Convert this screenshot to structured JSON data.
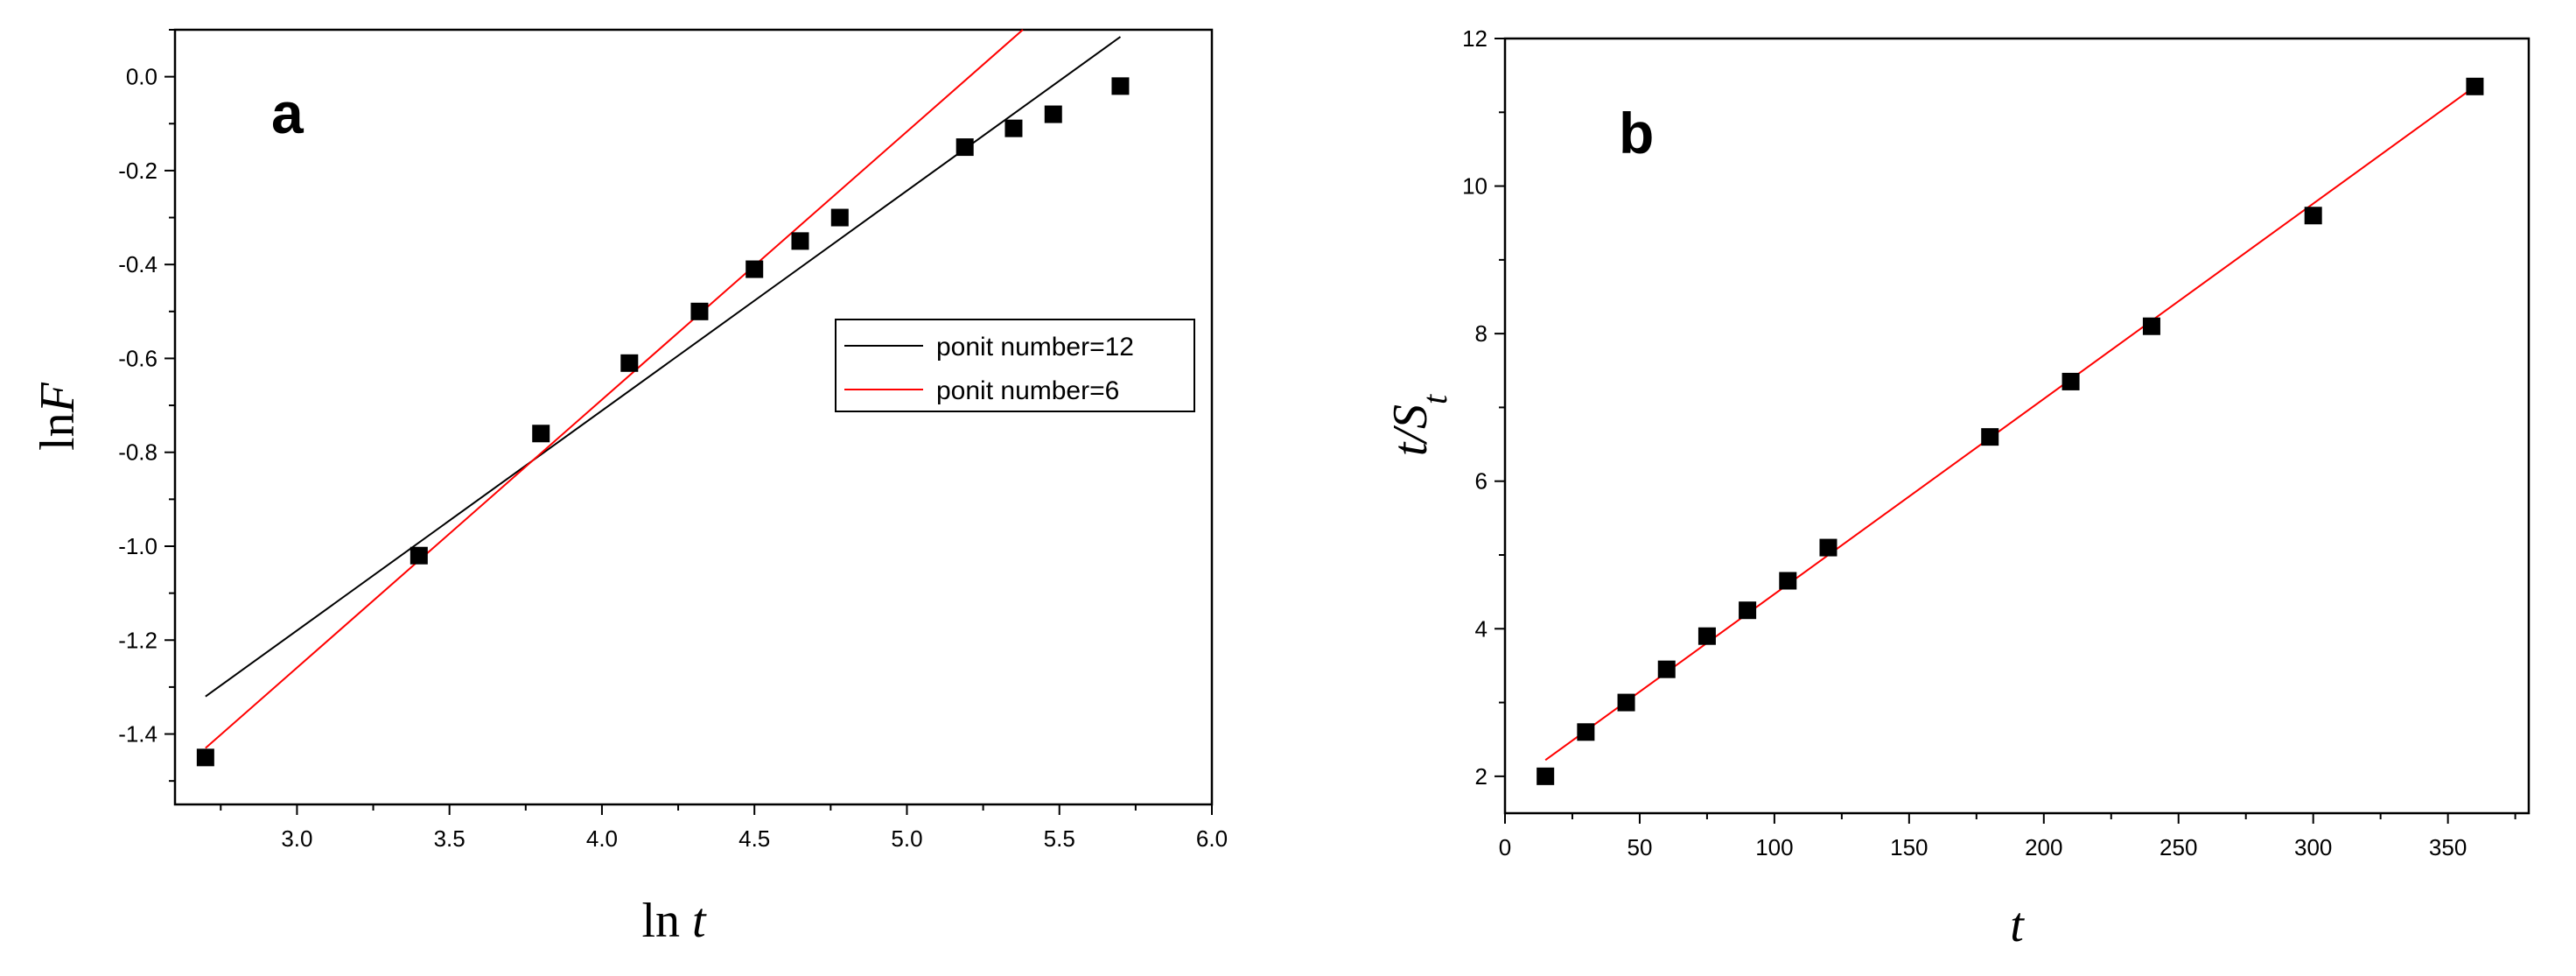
{
  "chart_data": [
    {
      "type": "scatter",
      "panel_label": "a",
      "xlabel_parts": {
        "prefix": "ln ",
        "var": "t"
      },
      "ylabel_parts": {
        "prefix": "ln",
        "var": "F"
      },
      "xlim": [
        2.6,
        6.0
      ],
      "ylim": [
        -1.55,
        0.1
      ],
      "xticks": [
        "3.0",
        "3.5",
        "4.0",
        "4.5",
        "5.0",
        "5.5",
        "6.0"
      ],
      "yticks": [
        "0.0",
        "-0.2",
        "-0.4",
        "-0.6",
        "-0.8",
        "-1.0",
        "-1.2",
        "-1.4"
      ],
      "points": [
        [
          2.7,
          -1.45
        ],
        [
          3.4,
          -1.02
        ],
        [
          3.8,
          -0.76
        ],
        [
          4.09,
          -0.61
        ],
        [
          4.32,
          -0.5
        ],
        [
          4.5,
          -0.41
        ],
        [
          4.65,
          -0.35
        ],
        [
          4.78,
          -0.3
        ],
        [
          5.19,
          -0.15
        ],
        [
          5.35,
          -0.11
        ],
        [
          5.48,
          -0.08
        ],
        [
          5.7,
          -0.02
        ]
      ],
      "fit_lines": [
        {
          "name": "ponit number=12",
          "color": "#000000",
          "x": [
            2.7,
            5.7
          ],
          "y": [
            -1.32,
            0.085
          ]
        },
        {
          "name": "ponit number=6",
          "color": "#ff0000",
          "x": [
            2.7,
            5.38
          ],
          "y": [
            -1.43,
            0.1
          ]
        }
      ],
      "legend_position": "center-right",
      "grid": false
    },
    {
      "type": "scatter",
      "panel_label": "b",
      "xlabel_parts": {
        "prefix": "",
        "var": "t"
      },
      "ylabel_parts": {
        "prefix": "",
        "var": "t/S",
        "sub": "t"
      },
      "xlim": [
        0,
        380
      ],
      "ylim": [
        1.5,
        12
      ],
      "xticks": [
        "0",
        "50",
        "100",
        "150",
        "200",
        "250",
        "300",
        "350"
      ],
      "yticks": [
        "2",
        "4",
        "6",
        "8",
        "10",
        "12"
      ],
      "points": [
        [
          15,
          2.0
        ],
        [
          30,
          2.6
        ],
        [
          45,
          3.0
        ],
        [
          60,
          3.45
        ],
        [
          75,
          3.9
        ],
        [
          90,
          4.25
        ],
        [
          105,
          4.65
        ],
        [
          120,
          5.1
        ],
        [
          180,
          6.6
        ],
        [
          210,
          7.35
        ],
        [
          240,
          8.1
        ],
        [
          300,
          9.6
        ],
        [
          360,
          11.35
        ]
      ],
      "fit_lines": [
        {
          "color": "#ff0000",
          "x": [
            15,
            360
          ],
          "y": [
            2.22,
            11.35
          ]
        }
      ],
      "grid": false
    }
  ]
}
